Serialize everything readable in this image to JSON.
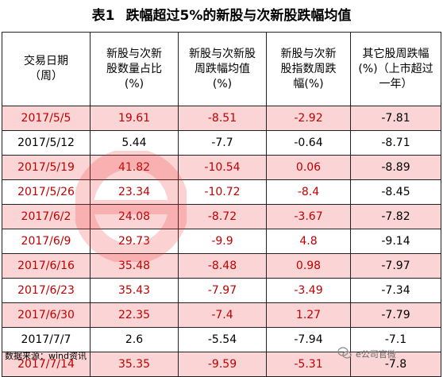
{
  "title": {
    "number": "表1",
    "text": "跌幅超过5%的新股与次新股跌幅均值"
  },
  "headers": [
    "交易日期\n（周）",
    "新股与次新\n股数量占比\n(%)",
    "新股与次新股\n周跌幅均值\n(%)",
    "新股与次新\n股指数周跌\n幅(%)",
    "其它股周跌幅\n(%)（上市超过\n一年）"
  ],
  "rows": [
    {
      "date": "2017/5/5",
      "ratio": "19.61",
      "avg": "-8.51",
      "index": "-2.92",
      "other": "-7.81"
    },
    {
      "date": "2017/5/12",
      "ratio": "5.44",
      "avg": "-7.7",
      "index": "-0.64",
      "other": "-8.71"
    },
    {
      "date": "2017/5/19",
      "ratio": "41.82",
      "avg": "-10.54",
      "index": "0.06",
      "other": "-8.89"
    },
    {
      "date": "2017/5/26",
      "ratio": "23.34",
      "avg": "-10.72",
      "index": "-8.4",
      "other": "-8.45"
    },
    {
      "date": "2017/6/2",
      "ratio": "24.08",
      "avg": "-8.72",
      "index": "-3.67",
      "other": "-7.82"
    },
    {
      "date": "2017/6/9",
      "ratio": "29.73",
      "avg": "-9.9",
      "index": "4.8",
      "other": "-9.14"
    },
    {
      "date": "2017/6/16",
      "ratio": "35.48",
      "avg": "-8.48",
      "index": "0.98",
      "other": "-7.97"
    },
    {
      "date": "2017/6/23",
      "ratio": "35.43",
      "avg": "-7.97",
      "index": "-3.49",
      "other": "-7.34"
    },
    {
      "date": "2017/6/30",
      "ratio": "22.35",
      "avg": "-7.4",
      "index": "1.27",
      "other": "-7.79"
    },
    {
      "date": "2017/7/7",
      "ratio": "2.6",
      "avg": "-5.54",
      "index": "-7.94",
      "other": "-7.1"
    },
    {
      "date": "2017/7/14",
      "ratio": "35.35",
      "avg": "-9.59",
      "index": "-5.31",
      "other": "-7.8"
    }
  ],
  "row_colors": {
    "pink": "#fbd5d5",
    "red_text": "#c00000",
    "pink_rows": [
      0,
      2,
      4,
      6,
      8,
      10
    ],
    "red_rows": [
      0,
      2,
      3,
      4,
      5,
      6,
      7,
      8,
      10
    ]
  },
  "footer": "数据来源：wind资讯",
  "watermark": {
    "text": "e公司官微",
    "icon": "wechat-icon",
    "logo": "e-company-logo"
  }
}
